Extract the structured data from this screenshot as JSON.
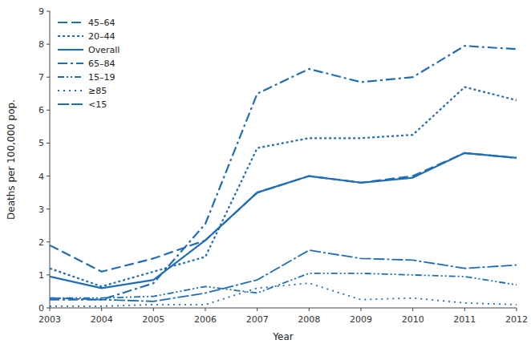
{
  "chart_data": {
    "type": "line",
    "xlabel": "Year",
    "ylabel": "Deaths per 100,000 pop.",
    "x": [
      2003,
      2004,
      2005,
      2006,
      2007,
      2008,
      2009,
      2010,
      2011,
      2012
    ],
    "xlim": [
      2003,
      2012
    ],
    "xticks": [
      2003,
      2004,
      2005,
      2006,
      2007,
      2008,
      2009,
      2010,
      2011,
      2012
    ],
    "ylim": [
      0,
      9
    ],
    "yticks": [
      0,
      1,
      2,
      3,
      4,
      5,
      6,
      7,
      8,
      9
    ],
    "grid": false,
    "legend": "upper left",
    "series": [
      {
        "name": "45–64",
        "color": "#1f6db5",
        "line_style": "dashed",
        "values": [
          1.9,
          1.1,
          1.5,
          2.05,
          3.5,
          4.0,
          3.8,
          4.0,
          4.7,
          4.55
        ]
      },
      {
        "name": "20–44",
        "color": "#1f6db5",
        "line_style": "dotted",
        "values": [
          1.2,
          0.65,
          1.1,
          1.55,
          4.85,
          5.15,
          5.15,
          5.25,
          6.7,
          6.3
        ]
      },
      {
        "name": "Overall",
        "color": "#1f6db5",
        "line_style": "solid",
        "values": [
          0.95,
          0.6,
          0.85,
          2.05,
          3.5,
          4.0,
          3.8,
          3.95,
          4.7,
          4.55
        ]
      },
      {
        "name": "65–84",
        "color": "#1f6db5",
        "line_style": "dashdot",
        "values": [
          0.25,
          0.25,
          0.75,
          2.55,
          6.5,
          7.25,
          6.85,
          7.0,
          7.95,
          7.85
        ]
      },
      {
        "name": "15–19",
        "color": "#1f6db5",
        "line_style": "dashdotdot",
        "values": [
          0.3,
          0.3,
          0.35,
          0.65,
          0.45,
          1.05,
          1.05,
          1.0,
          0.95,
          0.7
        ]
      },
      {
        "name": "≥85",
        "color": "#1f6db5",
        "line_style": "sparsedot",
        "values": [
          0.05,
          0.05,
          0.1,
          0.1,
          0.6,
          0.75,
          0.25,
          0.3,
          0.15,
          0.1
        ]
      },
      {
        "name": "<15",
        "color": "#1f6db5",
        "line_style": "longdash",
        "values": [
          0.3,
          0.25,
          0.2,
          0.45,
          0.85,
          1.75,
          1.5,
          1.45,
          1.2,
          1.3
        ]
      }
    ]
  }
}
